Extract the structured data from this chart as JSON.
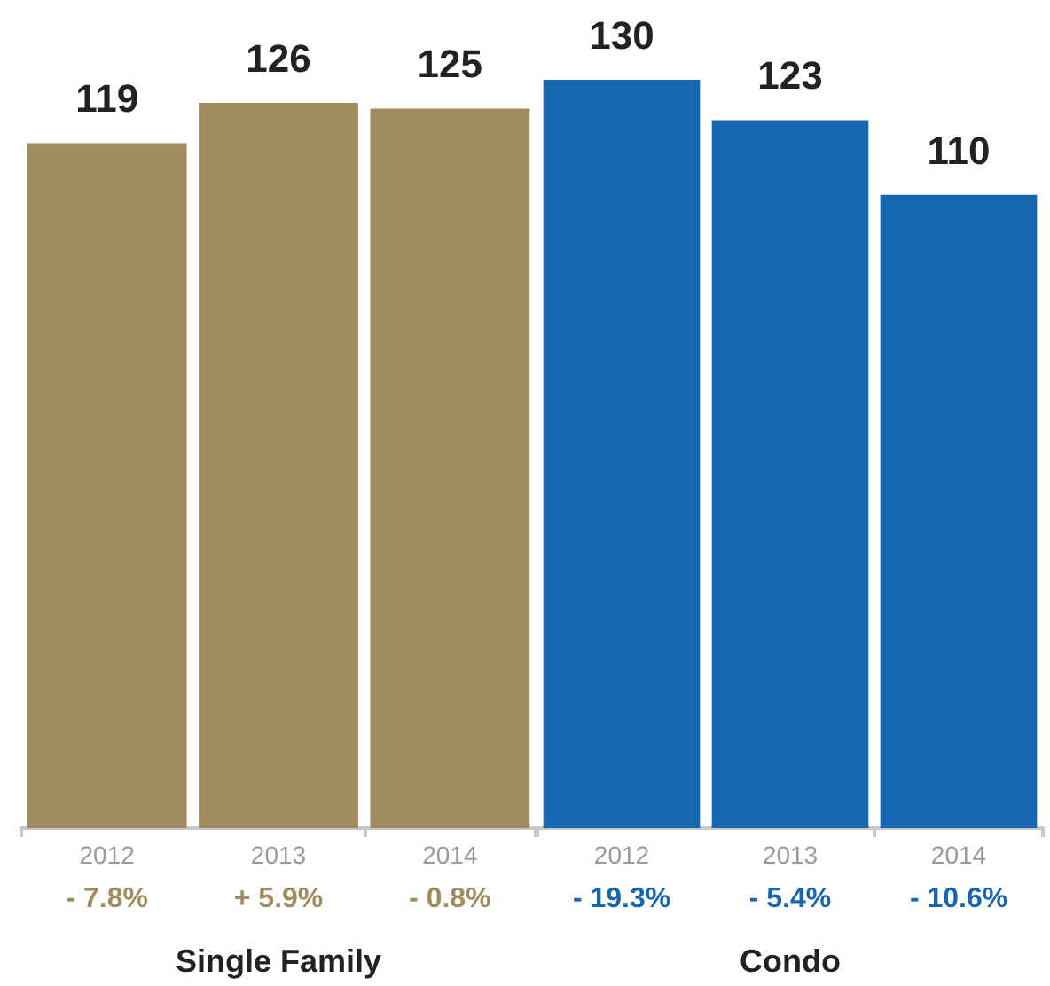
{
  "chart_data": [
    {
      "type": "bar",
      "xlabel": "Single Family",
      "categories": [
        "2012",
        "2013",
        "2014"
      ],
      "values": [
        119,
        126,
        125
      ],
      "color": "#a08c5e",
      "data_labels": true,
      "annotations": [
        "- 7.8%",
        "+ 5.9%",
        "- 0.8%"
      ]
    },
    {
      "type": "bar",
      "xlabel": "Condo",
      "categories": [
        "2012",
        "2013",
        "2014"
      ],
      "values": [
        130,
        123,
        110
      ],
      "color": "#1667af",
      "data_labels": true,
      "annotations": [
        "- 19.3%",
        "- 5.4%",
        "- 10.6%"
      ]
    }
  ]
}
